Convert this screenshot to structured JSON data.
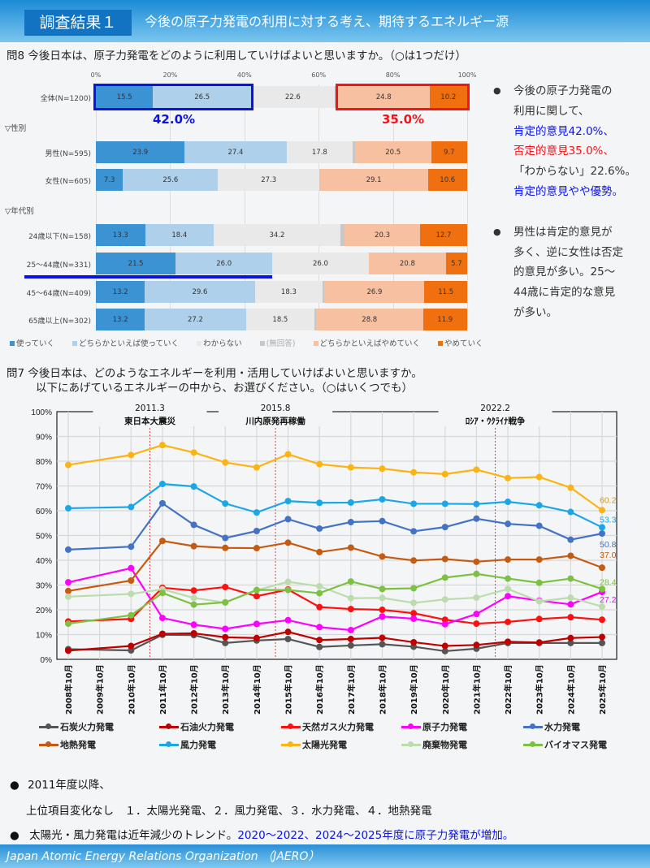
{
  "header": {
    "badge": "調査結果１",
    "title": "今後の原子力発電の利用に対する考え、期待するエネルギー源"
  },
  "q8": {
    "question": "問8 今後日本は、原子力発電をどのように利用していけばよいと思いますか。（○は1つだけ）",
    "section_gender": "▽性別",
    "section_age": "▽年代別",
    "positive_total": "42.0%",
    "negative_total": "35.0%",
    "colors": {
      "use": "#3b93d4",
      "rather_use": "#aed0ea",
      "dont_know": "#e9e9e9",
      "no_answer": "#c8c8c8",
      "rather_stop": "#f7c0a0",
      "stop": "#f07010"
    }
  },
  "notes": {
    "n1_l1": "今後の原子力発電の",
    "n1_l2": "利用に関して、",
    "n1_l3": "肯定的意見42.0%、",
    "n1_l4": "否定的意見35.0%、",
    "n1_l5": "「わからない」22.6%。",
    "n1_l6": "肯定的意見やや優勢。",
    "n2_l1": "男性は肯定的意見が",
    "n2_l2": "多く、逆に女性は否定",
    "n2_l3": "的意見が多い。25～",
    "n2_l4": "44歳に肯定的な意見",
    "n2_l5": "が多い。",
    "bullet": "●"
  },
  "q7": {
    "question_l1": "問7 今後日本は、どのようなエネルギーを利用・活用していけばよいと思いますか。",
    "question_l2": "以下にあげているエネルギーの中から、お選びください。（○はいくつでも）"
  },
  "summary": {
    "bullet": "●",
    "l1": "2011年度以降、",
    "l2": "上位項目変化なし　１．太陽光発電、２．風力発電、３．水力発電、４．地熱発電",
    "l3_black": "太陽光・風力発電は近年減少のトレンド。",
    "l3_blue": "2020～2022、2024～2025年度に原子力発電が増加。"
  },
  "footer": {
    "org": "Japan Atomic Energy Relations Organization （JAERO）"
  },
  "chart_data": [
    {
      "type": "bar",
      "stacked": true,
      "orientation": "horizontal",
      "title": "問8 今後日本は、原子力発電をどのように利用していけばよいと思いますか。",
      "xlim": [
        0,
        100
      ],
      "xticks": [
        "0%",
        "20%",
        "40%",
        "60%",
        "80%",
        "100%"
      ],
      "categories": [
        "全体(N=1200)",
        "男性(N=595)",
        "女性(N=605)",
        "24歳以下(N=158)",
        "25～44歳(N=331)",
        "45～64歳(N=409)",
        "65歳以上(N=302)"
      ],
      "series": [
        {
          "name": "使っていく",
          "values": [
            15.5,
            23.9,
            7.3,
            13.3,
            21.5,
            13.2,
            13.2
          ]
        },
        {
          "name": "どちらかといえば使っていく",
          "values": [
            26.5,
            27.4,
            25.6,
            18.4,
            26.0,
            29.6,
            27.2
          ]
        },
        {
          "name": "わからない",
          "values": [
            22.6,
            17.8,
            27.3,
            34.2,
            26.0,
            18.3,
            18.5
          ]
        },
        {
          "name": "(無回答)",
          "values": [
            0.9,
            0.6,
            0.1,
            1.1,
            0.0,
            0.5,
            0.4
          ]
        },
        {
          "name": "どちらかといえばやめていく",
          "values": [
            24.8,
            20.5,
            29.1,
            20.3,
            20.8,
            26.9,
            28.8
          ]
        },
        {
          "name": "やめていく",
          "values": [
            10.2,
            9.7,
            10.6,
            12.7,
            5.7,
            11.5,
            11.9
          ]
        }
      ],
      "legend": "bottom"
    },
    {
      "type": "line",
      "title": "問7 今後日本は、どのようなエネルギーを利用・活用していけばよいと思いますか。",
      "ylim": [
        0,
        100
      ],
      "yticks": [
        "0%",
        "10%",
        "20%",
        "30%",
        "40%",
        "50%",
        "60%",
        "70%",
        "80%",
        "90%",
        "100%"
      ],
      "x": [
        "2008年10月",
        "2009年10月",
        "2010年10月",
        "2011年10月",
        "2012年10月",
        "2013年10月",
        "2014年10月",
        "2015年10月",
        "2016年10月",
        "2017年10月",
        "2018年10月",
        "2019年10月",
        "2020年10月",
        "2021年10月",
        "2022年10月",
        "2023年10月",
        "2024年10月",
        "2025年10月"
      ],
      "grid": true,
      "legend": "bottom",
      "annotations": [
        {
          "date": "2011.3",
          "label": "東日本大震災",
          "between": [
            "2010年10月",
            "2011年10月"
          ]
        },
        {
          "date": "2015.8",
          "label": "川内原発再稼働",
          "between": [
            "2014年10月",
            "2015年10月"
          ]
        },
        {
          "date": "2022.2",
          "label": "ﾛｼｱ・ｳｸﾗｲﾅ戦争",
          "between": [
            "2021年10月",
            "2022年10月"
          ]
        }
      ],
      "series": [
        {
          "name": "石炭火力発電",
          "color": "#555555",
          "values": [
            4.1,
            null,
            3.6,
            9.9,
            9.8,
            6.6,
            7.6,
            8.2,
            5.0,
            5.6,
            6.1,
            5.1,
            3.3,
            4.3,
            6.6,
            6.6,
            6.6,
            6.6
          ],
          "end_label": ""
        },
        {
          "name": "石油火力発電",
          "color": "#c00000",
          "values": [
            3.5,
            null,
            5.4,
            10.3,
            10.5,
            8.9,
            8.6,
            11.1,
            7.8,
            8.2,
            8.7,
            6.9,
            5.4,
            5.8,
            7.1,
            6.8,
            8.6,
            9.0
          ],
          "end_label": ""
        },
        {
          "name": "天然ガス火力発電",
          "color": "#ff1010",
          "values": [
            15.3,
            null,
            16.3,
            28.9,
            27.8,
            29.2,
            25.5,
            28.2,
            21.1,
            20.3,
            20.0,
            18.6,
            16.0,
            14.4,
            15.1,
            16.3,
            17.0,
            16.0
          ],
          "end_label": ""
        },
        {
          "name": "原子力発電",
          "color": "#ff00ff",
          "values": [
            31.1,
            null,
            36.8,
            16.7,
            14.0,
            12.3,
            14.3,
            15.8,
            13.0,
            11.8,
            17.3,
            16.4,
            14.2,
            18.3,
            25.5,
            23.7,
            22.2,
            27.2
          ],
          "end_label": "27.2"
        },
        {
          "name": "水力発電",
          "color": "#4472c4",
          "values": [
            44.3,
            null,
            45.5,
            63.0,
            54.3,
            49.0,
            51.8,
            56.6,
            52.8,
            55.4,
            55.8,
            51.7,
            53.4,
            56.8,
            54.7,
            53.9,
            48.3,
            50.8
          ],
          "end_label": "50.8"
        },
        {
          "name": "地熱発電",
          "color": "#c55a11",
          "values": [
            27.6,
            null,
            31.8,
            47.8,
            45.7,
            45.0,
            44.9,
            47.1,
            43.3,
            45.1,
            41.5,
            39.9,
            40.5,
            39.4,
            40.3,
            40.3,
            41.8,
            37.0
          ],
          "end_label": "37.0"
        },
        {
          "name": "風力発電",
          "color": "#1aa7e8",
          "values": [
            61.0,
            null,
            61.5,
            70.8,
            69.8,
            62.9,
            59.3,
            63.9,
            63.2,
            63.3,
            64.6,
            62.8,
            62.8,
            62.7,
            63.6,
            62.2,
            59.5,
            53.3
          ],
          "end_label": "53.3"
        },
        {
          "name": "太陽光発電",
          "color": "#fbb414",
          "values": [
            78.5,
            null,
            82.5,
            86.5,
            83.5,
            79.5,
            77.5,
            82.8,
            78.8,
            77.5,
            77.0,
            75.5,
            74.8,
            76.6,
            73.2,
            73.6,
            69.3,
            60.2
          ],
          "end_label": "60.2"
        },
        {
          "name": "廃棄物発電",
          "color": "#bcdcae",
          "values": [
            25.3,
            null,
            26.4,
            28.3,
            24.8,
            22.9,
            27.9,
            31.3,
            29.5,
            24.7,
            24.8,
            22.8,
            24.2,
            24.9,
            28.4,
            23.4,
            24.9,
            21.3
          ],
          "end_label": ""
        },
        {
          "name": "バイオマス発電",
          "color": "#7cc142",
          "values": [
            14.4,
            null,
            17.8,
            26.8,
            22.1,
            23.0,
            28.0,
            28.0,
            26.7,
            31.4,
            28.4,
            28.7,
            33.0,
            34.5,
            32.6,
            30.9,
            32.6,
            28.4
          ],
          "end_label": "28.4"
        }
      ],
      "end_label_colors": {
        "太陽光発電": "#d49a14"
      }
    }
  ]
}
